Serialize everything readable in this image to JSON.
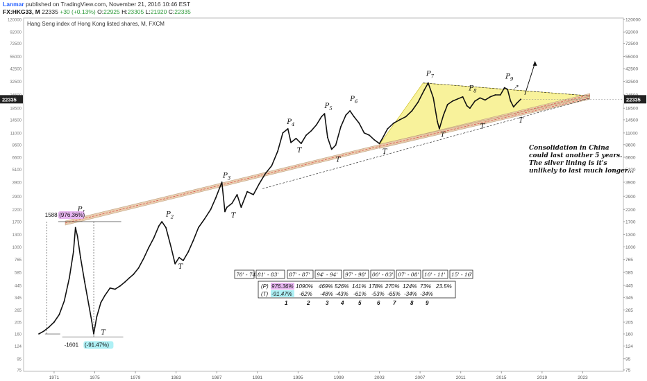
{
  "header": {
    "user": "Lanmar",
    "published": "published on TradingView.com, November 21, 2016 10:46 EST",
    "symbol": "FX:HKG33, M",
    "last": "22335",
    "change": "+30 (+0.13%)",
    "o_label": "O:",
    "o_value": "22925",
    "h_label": "H:",
    "h_value": "23305",
    "l_label": "L:",
    "l_value": "21920",
    "c_label": "C:",
    "c_value": "22335"
  },
  "chart_data": {
    "type": "line",
    "title": "Hang Seng index of Hong Kong listed shares, M, FXCM",
    "y_scale": "log",
    "ylim": [
      75,
      120000
    ],
    "xlim": [
      1968,
      2027
    ],
    "y_ticks": [
      120000,
      92000,
      72500,
      55000,
      42500,
      32500,
      24500,
      18500,
      14500,
      11000,
      8600,
      6600,
      5100,
      3900,
      2900,
      2200,
      1700,
      1300,
      1000,
      765,
      585,
      445,
      345,
      265,
      205,
      160,
      124,
      95,
      75
    ],
    "y_tick_labels": [
      "120000",
      "92000",
      "72500",
      "55000",
      "42500",
      "32500",
      "24500",
      "18500",
      "14500",
      "11000",
      "8600",
      "6600",
      "5100",
      "3900",
      "2900",
      "2200",
      "1700",
      "1300",
      "1000",
      "765",
      "585",
      "445",
      "345",
      "265",
      "205",
      "160",
      "124",
      "95",
      "75"
    ],
    "x_ticks": [
      1971,
      1975,
      1979,
      1983,
      1987,
      1991,
      1995,
      1999,
      2003,
      2007,
      2011,
      2015,
      2019,
      2023
    ],
    "x_tick_labels": [
      "1971",
      "1975",
      "1979",
      "1983",
      "1987",
      "1991",
      "1995",
      "1999",
      "2003",
      "2007",
      "2011",
      "2015",
      "2019",
      "2023"
    ],
    "last_price_label": "22335",
    "grid": false,
    "series": [
      {
        "x": [
          1969.5,
          1970.0,
          1970.5,
          1971.0,
          1971.5,
          1972.0,
          1972.5,
          1972.9,
          1973.1,
          1973.3,
          1973.6,
          1974.0,
          1974.4,
          1974.7,
          1974.9,
          1975.2,
          1975.6,
          1976.0,
          1976.5,
          1977.0,
          1977.5,
          1978.0,
          1978.4,
          1978.8,
          1979.3,
          1979.8,
          1980.3,
          1980.8,
          1981.3,
          1981.6,
          1982.0,
          1982.5,
          1982.9,
          1983.3,
          1983.7,
          1984.2,
          1984.7,
          1985.2,
          1985.8,
          1986.4,
          1986.9,
          1987.5,
          1987.8,
          1988.0,
          1988.5,
          1989.0,
          1989.4,
          1990.0,
          1990.6,
          1991.2,
          1991.8,
          1992.4,
          1993.0,
          1993.5,
          1994.0,
          1994.3,
          1994.8,
          1995.3,
          1995.8,
          1996.3,
          1996.8,
          1997.3,
          1997.6,
          1997.9,
          1998.3,
          1998.7,
          1999.2,
          1999.7,
          2000.1,
          2000.5,
          2001.0,
          2001.5,
          2002.0,
          2002.5,
          2003.0,
          2003.3,
          2003.8,
          2004.4,
          2005.0,
          2005.6,
          2006.2,
          2006.8,
          2007.4,
          2007.8,
          2008.3,
          2008.7,
          2008.9,
          2009.3,
          2009.7,
          2010.2,
          2010.7,
          2011.2,
          2011.6,
          2011.9,
          2012.4,
          2012.9,
          2013.4,
          2013.9,
          2014.4,
          2014.9,
          2015.3,
          2015.6,
          2015.9,
          2016.2,
          2016.5,
          2016.9
        ],
        "y": [
          160,
          170,
          185,
          205,
          240,
          320,
          520,
          900,
          1500,
          1250,
          800,
          480,
          300,
          210,
          160,
          230,
          310,
          360,
          420,
          410,
          440,
          480,
          520,
          560,
          640,
          780,
          980,
          1200,
          1550,
          1700,
          1500,
          1000,
          700,
          800,
          750,
          900,
          1150,
          1500,
          1800,
          2200,
          2800,
          3900,
          2100,
          2300,
          2500,
          3000,
          2300,
          3200,
          3000,
          3800,
          4700,
          5500,
          7500,
          11000,
          12000,
          9000,
          9800,
          8800,
          10500,
          11500,
          13000,
          15500,
          16500,
          10000,
          7800,
          8500,
          12500,
          16000,
          17500,
          15500,
          13500,
          11000,
          10500,
          9500,
          8800,
          9800,
          12000,
          13500,
          14500,
          15500,
          17500,
          21000,
          27000,
          31500,
          23000,
          14000,
          12000,
          16000,
          20000,
          21500,
          22500,
          23500,
          19500,
          18500,
          21500,
          23000,
          22000,
          23500,
          24500,
          24500,
          28500,
          27500,
          21500,
          19000,
          20500,
          22335
        ]
      }
    ],
    "annotations": [
      {
        "text": "P",
        "sub": "1",
        "x": 1973.3,
        "y": 2100
      },
      {
        "text": "P",
        "sub": "2",
        "x": 1982.0,
        "y": 1900
      },
      {
        "text": "P",
        "sub": "3",
        "x": 1987.6,
        "y": 4300
      },
      {
        "text": "P",
        "sub": "4",
        "x": 1993.9,
        "y": 13300
      },
      {
        "text": "P",
        "sub": "5",
        "x": 1997.6,
        "y": 18500
      },
      {
        "text": "P",
        "sub": "6",
        "x": 2000.1,
        "y": 21500
      },
      {
        "text": "P",
        "sub": "7",
        "x": 2007.6,
        "y": 36500
      },
      {
        "text": "P",
        "sub": "8",
        "x": 2011.8,
        "y": 27000
      },
      {
        "text": "P",
        "sub": "9",
        "x": 2015.4,
        "y": 34500
      },
      {
        "text": "T",
        "sub": "",
        "x": 1975.6,
        "y": 158
      },
      {
        "text": "T",
        "sub": "",
        "x": 1983.2,
        "y": 630
      },
      {
        "text": "T",
        "sub": "",
        "x": 1988.4,
        "y": 1850
      },
      {
        "text": "T",
        "sub": "",
        "x": 1994.9,
        "y": 7300
      },
      {
        "text": "T",
        "sub": "",
        "x": 1998.7,
        "y": 6000
      },
      {
        "text": "T",
        "sub": "",
        "x": 2003.3,
        "y": 7100
      },
      {
        "text": "T",
        "sub": "",
        "x": 2009.0,
        "y": 10100
      },
      {
        "text": "T",
        "sub": "",
        "x": 2012.9,
        "y": 12100
      },
      {
        "text": "T",
        "sub": "",
        "x": 2016.7,
        "y": 13700
      }
    ],
    "measurements": {
      "top_value": "1588",
      "top_pct": "(976.36%)",
      "bottom_value": "-1601",
      "bottom_pct": "(-91.47%)"
    },
    "comment_lines": [
      "Consolidation in China",
      "could last another 5 years.",
      "The silver lining is it's",
      "unlikely to last much longer..."
    ],
    "table": {
      "periods": [
        "70' - 74'",
        "81' - 83'",
        "87' - 87'",
        "94' - 94'",
        "97' - 98'",
        "00' - 03'",
        "07' - 08'",
        "10' - 11'",
        "15' - 16'"
      ],
      "p_label": "(P)",
      "p_values": [
        "976.36%",
        "1090%",
        "469%",
        "526%",
        "141%",
        "178%",
        "270%",
        "124%",
        "73%",
        "23.5%"
      ],
      "t_label": "(T)",
      "t_values": [
        "-91.47%",
        "-62%",
        "-48%",
        "-43%",
        "-61%",
        "-53%",
        "-65%",
        "-34%",
        "-34%"
      ],
      "numbers": [
        "1",
        "2",
        "3",
        "4",
        "5",
        "6",
        "7",
        "8",
        "9"
      ]
    },
    "colors": {
      "price": "#111111",
      "channel_fill": "#e8c9a8",
      "channel_dash": "#d9534f",
      "triangle_fill": "#f7f08a",
      "triangle_edge": "#c9b800",
      "pct_pink": "#e7b6f0",
      "pct_cyan": "#aef0f5",
      "last_label_bg": "#222222"
    }
  }
}
